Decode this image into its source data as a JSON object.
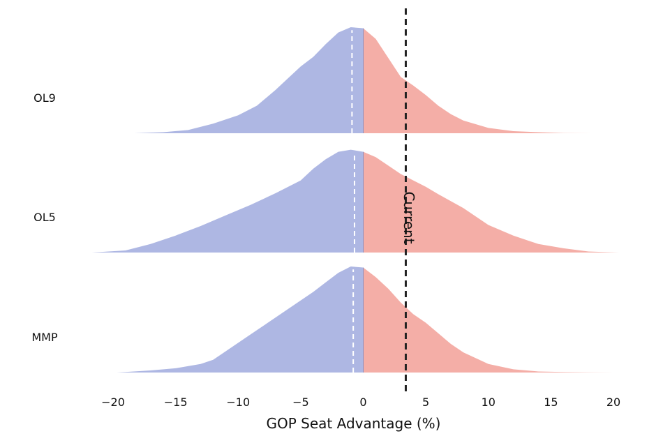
{
  "chart_data": {
    "type": "ridgeline",
    "xlabel": "GOP Seat Advantage (%)",
    "xlim": [
      -20,
      20
    ],
    "x_ticks": [
      -20,
      -15,
      -10,
      -5,
      0,
      5,
      10,
      15,
      20
    ],
    "x_tick_labels": [
      "−20",
      "−15",
      "−10",
      "−5",
      "0",
      "5",
      "10",
      "15",
      "20"
    ],
    "grid": false,
    "colors": {
      "negative_fill": "#aeb7e3",
      "positive_fill": "#f4aea7",
      "reference_line": "#222222",
      "median_line": "#ffffff"
    },
    "reference_line": {
      "label": "Current",
      "x": 3.4,
      "style": "dashed"
    },
    "series": [
      {
        "name": "OL9",
        "median": -0.9,
        "x": [
          -18.3,
          -16,
          -14,
          -12,
          -10,
          -8.5,
          -8,
          -7,
          -6,
          -5,
          -4,
          -3,
          -2,
          -1,
          0,
          1,
          2,
          3,
          4,
          5,
          6,
          7,
          8,
          10,
          12,
          14,
          16,
          18.3
        ],
        "density": [
          0,
          0.01,
          0.03,
          0.09,
          0.17,
          0.26,
          0.31,
          0.41,
          0.52,
          0.63,
          0.72,
          0.84,
          0.95,
          1.0,
          0.99,
          0.89,
          0.71,
          0.53,
          0.45,
          0.36,
          0.26,
          0.18,
          0.12,
          0.05,
          0.02,
          0.01,
          0.002,
          0
        ]
      },
      {
        "name": "OL5",
        "median": -0.7,
        "x": [
          -21.7,
          -19,
          -17,
          -15,
          -13,
          -11,
          -9,
          -7,
          -5,
          -4,
          -3,
          -2,
          -1,
          0,
          1,
          2,
          3,
          4,
          5,
          6,
          8,
          10,
          12,
          14,
          16,
          18,
          20,
          20.5
        ],
        "density": [
          0,
          0.02,
          0.08,
          0.16,
          0.25,
          0.35,
          0.45,
          0.56,
          0.68,
          0.79,
          0.88,
          0.95,
          0.97,
          0.95,
          0.9,
          0.82,
          0.74,
          0.68,
          0.62,
          0.55,
          0.42,
          0.26,
          0.16,
          0.08,
          0.04,
          0.01,
          0.002,
          0
        ]
      },
      {
        "name": "MMP",
        "median": -0.8,
        "x": [
          -19.7,
          -17,
          -15,
          -13,
          -12,
          -11,
          -9,
          -7,
          -5,
          -4,
          -3,
          -2,
          -1,
          0,
          1,
          2,
          3,
          4,
          5,
          6,
          7,
          8,
          10,
          12,
          14,
          16,
          18,
          20
        ],
        "density": [
          0,
          0.02,
          0.04,
          0.08,
          0.12,
          0.2,
          0.36,
          0.52,
          0.68,
          0.76,
          0.85,
          0.94,
          1.0,
          0.99,
          0.9,
          0.79,
          0.66,
          0.55,
          0.47,
          0.37,
          0.27,
          0.19,
          0.08,
          0.03,
          0.01,
          0.005,
          0.002,
          0
        ]
      }
    ]
  }
}
